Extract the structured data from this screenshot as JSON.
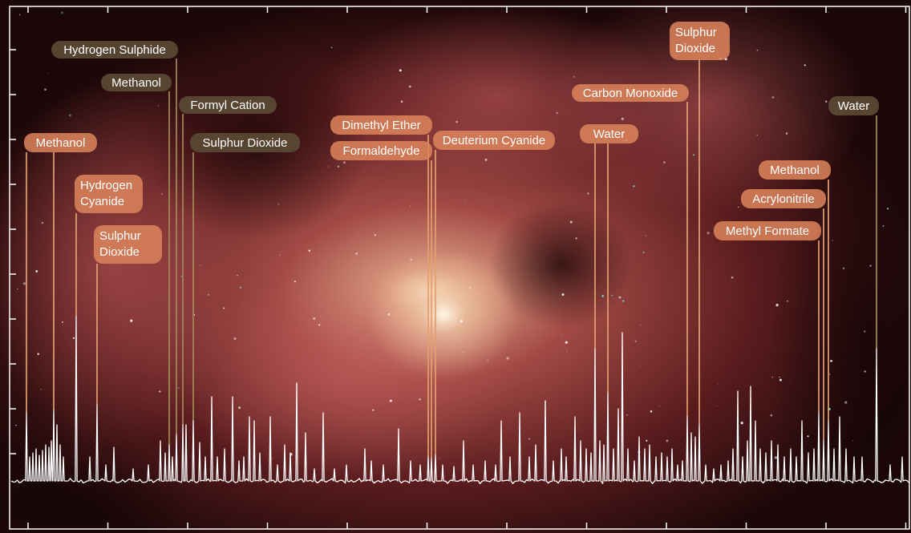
{
  "chart_data": {
    "type": "line",
    "title": "",
    "xlabel": "",
    "ylabel": "",
    "grid": false,
    "colors": {
      "spectrum_line": "#ffffff",
      "label_dark": "#5a4a34",
      "label_light": "#d9825a",
      "leader_dark": "#a48a5a",
      "leader_light": "#e3a070"
    },
    "annotations": [
      {
        "text": "Hydrogen Sulphide",
        "x": 220
      },
      {
        "text": "Methanol",
        "x": 211
      },
      {
        "text": "Formyl Cation",
        "x": 228
      },
      {
        "text": "Sulphur Dioxide",
        "x": 241
      },
      {
        "text": "Methanol",
        "x": 33
      },
      {
        "text": "Methanol",
        "x": 67
      },
      {
        "text": "Hydrogen Cyanide",
        "x": 95
      },
      {
        "text": "Sulphur Dioxide",
        "x": 121
      },
      {
        "text": "Dimethyl Ether",
        "x": 534
      },
      {
        "text": "Formaldehyde",
        "x": 538
      },
      {
        "text": "Deuterium Cyanide",
        "x": 543
      },
      {
        "text": "Water",
        "x": 742
      },
      {
        "text": "Water",
        "x": 758
      },
      {
        "text": "Carbon Monoxide",
        "x": 857
      },
      {
        "text": "Sulphur Dioxide",
        "x": 872
      },
      {
        "text": "Water",
        "x": 1093
      },
      {
        "text": "Methanol",
        "x": 1033
      },
      {
        "text": "Acrylonitrile",
        "x": 1027
      },
      {
        "text": "Methyl Formate",
        "x": 1021
      }
    ],
    "peaks": [
      {
        "x": 33,
        "h": 85
      },
      {
        "x": 37,
        "h": 30
      },
      {
        "x": 41,
        "h": 35
      },
      {
        "x": 45,
        "h": 40
      },
      {
        "x": 49,
        "h": 32
      },
      {
        "x": 53,
        "h": 38
      },
      {
        "x": 57,
        "h": 45
      },
      {
        "x": 61,
        "h": 42
      },
      {
        "x": 64,
        "h": 50
      },
      {
        "x": 67,
        "h": 88
      },
      {
        "x": 71,
        "h": 70
      },
      {
        "x": 75,
        "h": 45
      },
      {
        "x": 79,
        "h": 30
      },
      {
        "x": 95,
        "h": 205
      },
      {
        "x": 112,
        "h": 30
      },
      {
        "x": 121,
        "h": 95
      },
      {
        "x": 132,
        "h": 20
      },
      {
        "x": 142,
        "h": 42
      },
      {
        "x": 166,
        "h": 15
      },
      {
        "x": 185,
        "h": 20
      },
      {
        "x": 200,
        "h": 50
      },
      {
        "x": 206,
        "h": 35
      },
      {
        "x": 211,
        "h": 45
      },
      {
        "x": 215,
        "h": 30
      },
      {
        "x": 220,
        "h": 58
      },
      {
        "x": 228,
        "h": 70
      },
      {
        "x": 232,
        "h": 70
      },
      {
        "x": 241,
        "h": 75
      },
      {
        "x": 249,
        "h": 48
      },
      {
        "x": 256,
        "h": 30
      },
      {
        "x": 264,
        "h": 105
      },
      {
        "x": 271,
        "h": 30
      },
      {
        "x": 280,
        "h": 40
      },
      {
        "x": 290,
        "h": 105
      },
      {
        "x": 298,
        "h": 25
      },
      {
        "x": 304,
        "h": 30
      },
      {
        "x": 311,
        "h": 80
      },
      {
        "x": 317,
        "h": 75
      },
      {
        "x": 324,
        "h": 35
      },
      {
        "x": 337,
        "h": 80
      },
      {
        "x": 346,
        "h": 20
      },
      {
        "x": 355,
        "h": 45
      },
      {
        "x": 362,
        "h": 35
      },
      {
        "x": 370,
        "h": 122
      },
      {
        "x": 381,
        "h": 60
      },
      {
        "x": 392,
        "h": 15
      },
      {
        "x": 403,
        "h": 85
      },
      {
        "x": 417,
        "h": 15
      },
      {
        "x": 432,
        "h": 20
      },
      {
        "x": 455,
        "h": 40
      },
      {
        "x": 463,
        "h": 25
      },
      {
        "x": 478,
        "h": 20
      },
      {
        "x": 497,
        "h": 65
      },
      {
        "x": 512,
        "h": 25
      },
      {
        "x": 524,
        "h": 20
      },
      {
        "x": 534,
        "h": 30
      },
      {
        "x": 538,
        "h": 28
      },
      {
        "x": 543,
        "h": 32
      },
      {
        "x": 552,
        "h": 20
      },
      {
        "x": 566,
        "h": 18
      },
      {
        "x": 578,
        "h": 50
      },
      {
        "x": 590,
        "h": 20
      },
      {
        "x": 605,
        "h": 25
      },
      {
        "x": 618,
        "h": 20
      },
      {
        "x": 625,
        "h": 75
      },
      {
        "x": 636,
        "h": 30
      },
      {
        "x": 648,
        "h": 85
      },
      {
        "x": 660,
        "h": 30
      },
      {
        "x": 668,
        "h": 45
      },
      {
        "x": 680,
        "h": 100
      },
      {
        "x": 690,
        "h": 25
      },
      {
        "x": 700,
        "h": 40
      },
      {
        "x": 706,
        "h": 30
      },
      {
        "x": 717,
        "h": 80
      },
      {
        "x": 724,
        "h": 50
      },
      {
        "x": 731,
        "h": 40
      },
      {
        "x": 737,
        "h": 35
      },
      {
        "x": 742,
        "h": 165
      },
      {
        "x": 748,
        "h": 50
      },
      {
        "x": 753,
        "h": 45
      },
      {
        "x": 758,
        "h": 110
      },
      {
        "x": 765,
        "h": 40
      },
      {
        "x": 771,
        "h": 90
      },
      {
        "x": 776,
        "h": 185
      },
      {
        "x": 783,
        "h": 40
      },
      {
        "x": 791,
        "h": 25
      },
      {
        "x": 797,
        "h": 55
      },
      {
        "x": 804,
        "h": 40
      },
      {
        "x": 810,
        "h": 45
      },
      {
        "x": 818,
        "h": 30
      },
      {
        "x": 825,
        "h": 35
      },
      {
        "x": 832,
        "h": 30
      },
      {
        "x": 838,
        "h": 40
      },
      {
        "x": 845,
        "h": 20
      },
      {
        "x": 851,
        "h": 25
      },
      {
        "x": 857,
        "h": 80
      },
      {
        "x": 862,
        "h": 60
      },
      {
        "x": 867,
        "h": 55
      },
      {
        "x": 872,
        "h": 70
      },
      {
        "x": 880,
        "h": 20
      },
      {
        "x": 890,
        "h": 15
      },
      {
        "x": 899,
        "h": 20
      },
      {
        "x": 908,
        "h": 25
      },
      {
        "x": 914,
        "h": 40
      },
      {
        "x": 920,
        "h": 112
      },
      {
        "x": 926,
        "h": 30
      },
      {
        "x": 932,
        "h": 50
      },
      {
        "x": 936,
        "h": 118
      },
      {
        "x": 942,
        "h": 75
      },
      {
        "x": 948,
        "h": 40
      },
      {
        "x": 955,
        "h": 35
      },
      {
        "x": 962,
        "h": 50
      },
      {
        "x": 970,
        "h": 45
      },
      {
        "x": 978,
        "h": 30
      },
      {
        "x": 986,
        "h": 40
      },
      {
        "x": 993,
        "h": 30
      },
      {
        "x": 1000,
        "h": 75
      },
      {
        "x": 1008,
        "h": 35
      },
      {
        "x": 1015,
        "h": 40
      },
      {
        "x": 1021,
        "h": 85
      },
      {
        "x": 1027,
        "h": 50
      },
      {
        "x": 1033,
        "h": 75
      },
      {
        "x": 1040,
        "h": 40
      },
      {
        "x": 1047,
        "h": 80
      },
      {
        "x": 1055,
        "h": 40
      },
      {
        "x": 1065,
        "h": 30
      },
      {
        "x": 1075,
        "h": 30
      },
      {
        "x": 1093,
        "h": 165
      },
      {
        "x": 1110,
        "h": 20
      },
      {
        "x": 1125,
        "h": 30
      }
    ]
  }
}
